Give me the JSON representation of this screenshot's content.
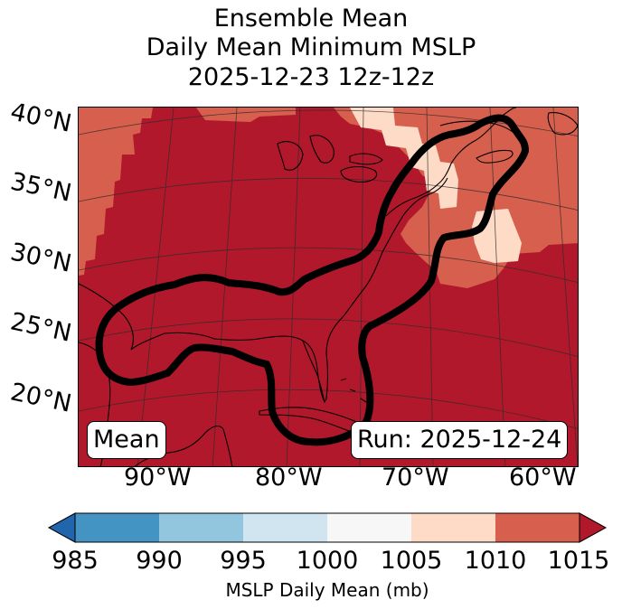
{
  "title": {
    "line1": "Ensemble Mean",
    "line2": "Daily Mean Minimum MSLP",
    "line3": "2025-12-23 12z-12z"
  },
  "map": {
    "lat_labels": [
      "40°N",
      "35°N",
      "30°N",
      "25°N",
      "20°N"
    ],
    "lon_labels": [
      "90°W",
      "80°W",
      "70°W",
      "60°W"
    ],
    "mean_box": "Mean",
    "run_box": "Run: 2025-12-24",
    "background_color": "#b2182b",
    "contour_color": "#000000"
  },
  "colorbar": {
    "ticks": [
      "985",
      "990",
      "995",
      "1000",
      "1005",
      "1010",
      "1015"
    ],
    "colors": [
      "#2166ac",
      "#4393c3",
      "#92c5de",
      "#d1e5f0",
      "#f7f7f7",
      "#fddbc7",
      "#d6604d",
      "#b2182b"
    ],
    "label": "MSLP Daily Mean (mb)"
  }
}
